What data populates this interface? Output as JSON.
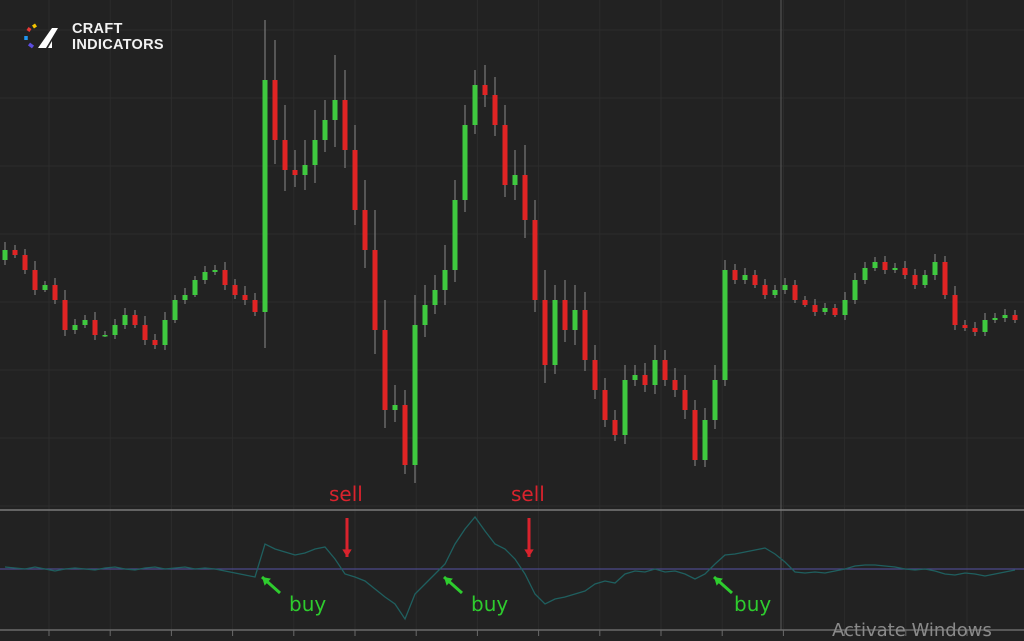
{
  "brand": {
    "line1": "CRAFT",
    "line2": "INDICATORS"
  },
  "colors": {
    "background": "#222222",
    "up": "#3fc93f",
    "down": "#e02424",
    "wick": "#8a8a8a",
    "oscillator": "#1f5f5f",
    "midline": "#4b4a8a",
    "sell": "#d9232d",
    "buy": "#2ecc2e"
  },
  "watermark": "Activate Windows",
  "chart_data": [
    {
      "type": "candlestick",
      "title": "",
      "ylim": [
        0,
        510
      ],
      "open_first": 250,
      "close": [
        260,
        255,
        240,
        220,
        225,
        210,
        180,
        185,
        190,
        175,
        175,
        185,
        195,
        185,
        170,
        165,
        190,
        210,
        215,
        230,
        238,
        240,
        225,
        215,
        210,
        198,
        430,
        370,
        340,
        335,
        345,
        370,
        390,
        410,
        360,
        300,
        260,
        180,
        100,
        105,
        45,
        185,
        205,
        220,
        240,
        310,
        385,
        425,
        415,
        385,
        325,
        335,
        290,
        210,
        145,
        210,
        180,
        200,
        150,
        120,
        90,
        75,
        130,
        135,
        125,
        150,
        130,
        120,
        100,
        50,
        90,
        130,
        240,
        230,
        235,
        225,
        215,
        220,
        225,
        210,
        205,
        198,
        202,
        195,
        210,
        230,
        242,
        248,
        240,
        242,
        235,
        225,
        235,
        248,
        215,
        185,
        182,
        178,
        190,
        192,
        195,
        190
      ],
      "wick": [
        8,
        5,
        6,
        9,
        4,
        7,
        10,
        6,
        5,
        8,
        4,
        6,
        7,
        5,
        9,
        6,
        8,
        5,
        7,
        4,
        6,
        5,
        8,
        6,
        9,
        7,
        60,
        40,
        35,
        20,
        25,
        30,
        20,
        45,
        30,
        25,
        30,
        40,
        30,
        20,
        15,
        30,
        20,
        15,
        25,
        20,
        20,
        15,
        20,
        18,
        20,
        25,
        30,
        20,
        30,
        15,
        20,
        25,
        18,
        15,
        12,
        10,
        15,
        10,
        12,
        15,
        10,
        12,
        15,
        10,
        12,
        15,
        10,
        6,
        7,
        5,
        6,
        5,
        7,
        5,
        4,
        6,
        5,
        4,
        8,
        7,
        6,
        5,
        6,
        5,
        7,
        6,
        5,
        8,
        6,
        9,
        5,
        6,
        7,
        5,
        6,
        5
      ]
    },
    {
      "type": "line",
      "name": "oscillator",
      "baseline": 0,
      "values": [
        2,
        1,
        0,
        2,
        0,
        -2,
        0,
        1,
        0,
        -1,
        1,
        2,
        0,
        -1,
        1,
        2,
        0,
        1,
        2,
        0,
        1,
        0,
        -2,
        -4,
        -6,
        -8,
        25,
        20,
        17,
        14,
        16,
        20,
        22,
        10,
        -5,
        -8,
        -12,
        -20,
        -28,
        -35,
        -50,
        -25,
        -15,
        -5,
        5,
        25,
        40,
        52,
        38,
        25,
        20,
        10,
        -5,
        -25,
        -35,
        -30,
        -28,
        -25,
        -22,
        -15,
        -12,
        -14,
        -5,
        -2,
        -3,
        0,
        -3,
        -2,
        -5,
        -10,
        -5,
        5,
        14,
        15,
        17,
        19,
        21,
        15,
        7,
        -3,
        -4,
        -3,
        -4,
        -2,
        0,
        3,
        4,
        4,
        3,
        2,
        0,
        -1,
        0,
        -2,
        -5,
        -6,
        -4,
        -5,
        -7,
        -5,
        -3,
        -1
      ],
      "signals": [
        {
          "type": "buy",
          "label": "buy",
          "index": 25
        },
        {
          "type": "sell",
          "label": "sell",
          "index": 34
        },
        {
          "type": "buy",
          "label": "buy",
          "index": 43
        },
        {
          "type": "sell",
          "label": "sell",
          "index": 52
        },
        {
          "type": "buy",
          "label": "buy",
          "index": 70
        }
      ]
    }
  ]
}
